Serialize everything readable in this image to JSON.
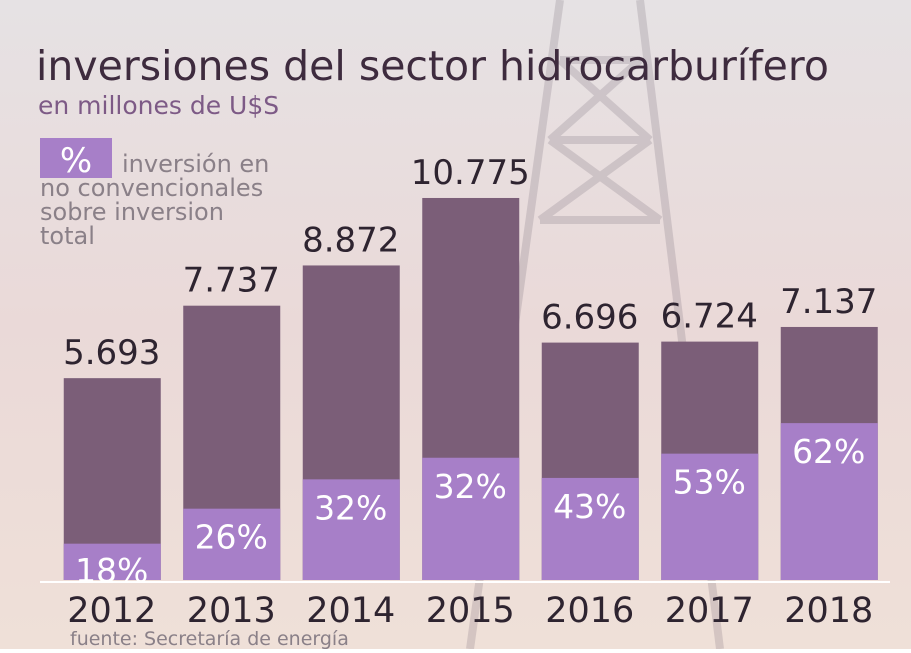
{
  "chart_data": {
    "type": "bar",
    "title": "inversiones del sector hidrocarburífero",
    "subtitle": "en millones de U$S",
    "legend": {
      "symbol": "%",
      "lines": [
        "inversión en",
        "no convencionales",
        "sobre inversion",
        "total"
      ]
    },
    "source": "fuente: Secretaría de energía",
    "categories": [
      "2012",
      "2013",
      "2014",
      "2015",
      "2016",
      "2017",
      "2018"
    ],
    "series": [
      {
        "color": "#7b5e78",
        "values": [
          5693,
          7737,
          8872,
          10775,
          6696,
          6724,
          7137
        ],
        "value_labels": [
          "5.693",
          "7.737",
          "8.872",
          "10.775",
          "6.696",
          "6.724",
          "7.137"
        ]
      },
      {
        "color": "#a77fc8",
        "values": [
          18,
          26,
          32,
          32,
          43,
          53,
          62
        ],
        "value_labels": [
          "18%",
          "26%",
          "32%",
          "32%",
          "43%",
          "53%",
          "62%"
        ]
      }
    ],
    "ylim": [
      0,
      11000
    ]
  }
}
